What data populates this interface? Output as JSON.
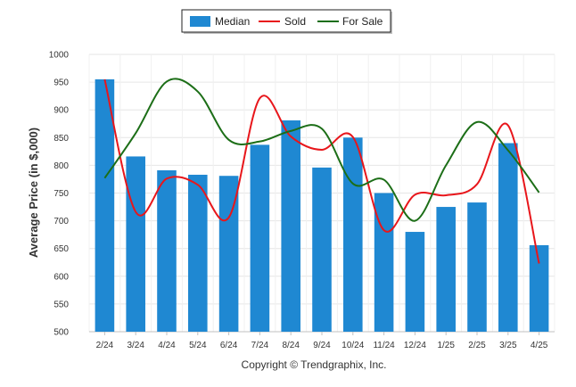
{
  "chart_data": {
    "type": "bar",
    "title": "",
    "xlabel": "",
    "ylabel": "Average Price (in $,000)",
    "ylim": [
      500,
      1000
    ],
    "yticks": [
      500,
      550,
      600,
      650,
      700,
      750,
      800,
      850,
      900,
      950,
      1000
    ],
    "grid": true,
    "legend_position": "top-center",
    "categories": [
      "2/24",
      "3/24",
      "4/24",
      "5/24",
      "6/24",
      "7/24",
      "8/24",
      "9/24",
      "10/24",
      "11/24",
      "12/24",
      "1/25",
      "2/25",
      "3/25",
      "4/25"
    ],
    "series": [
      {
        "name": "Median",
        "type": "bar",
        "color": "#1f88d2",
        "values": [
          955,
          816,
          791,
          783,
          781,
          837,
          881,
          796,
          850,
          750,
          680,
          725,
          733,
          840,
          656
        ]
      },
      {
        "name": "Sold",
        "type": "line",
        "color": "#e8161b",
        "values": [
          955,
          716,
          776,
          765,
          706,
          921,
          852,
          828,
          851,
          683,
          747,
          746,
          766,
          872,
          623
        ]
      },
      {
        "name": "For Sale",
        "type": "line",
        "color": "#1c6e17",
        "values": [
          777,
          858,
          951,
          933,
          846,
          843,
          862,
          866,
          767,
          774,
          700,
          800,
          878,
          827,
          751
        ]
      }
    ],
    "footer": "Copyright © Trendgraphix, Inc."
  }
}
